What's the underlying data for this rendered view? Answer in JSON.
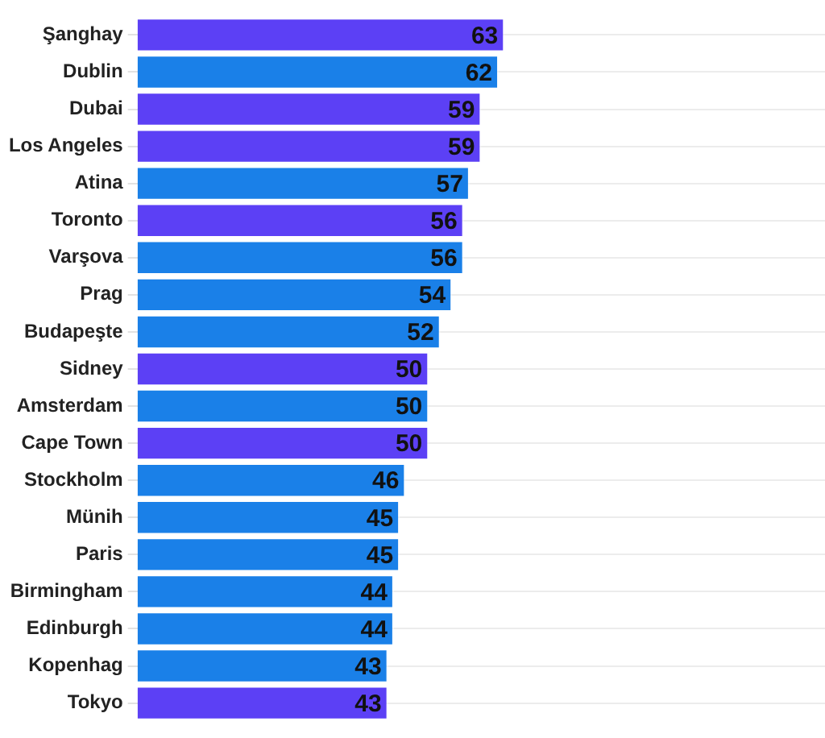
{
  "chart_data": {
    "type": "bar",
    "orientation": "horizontal",
    "categories": [
      "Şanghay",
      "Dublin",
      "Dubai",
      "Los Angeles",
      "Atina",
      "Toronto",
      "Varşova",
      "Prag",
      "Budapeşte",
      "Sidney",
      "Amsterdam",
      "Cape Town",
      "Stockholm",
      "Münih",
      "Paris",
      "Birmingham",
      "Edinburgh",
      "Kopenhag",
      "Tokyo"
    ],
    "values": [
      63,
      62,
      59,
      59,
      57,
      56,
      56,
      54,
      52,
      50,
      50,
      50,
      46,
      45,
      45,
      44,
      44,
      43,
      43
    ],
    "colors": [
      "#5c40f5",
      "#1a80e8",
      "#5c40f5",
      "#5c40f5",
      "#1a80e8",
      "#5c40f5",
      "#1a80e8",
      "#1a80e8",
      "#1a80e8",
      "#5c40f5",
      "#1a80e8",
      "#5c40f5",
      "#1a80e8",
      "#1a80e8",
      "#1a80e8",
      "#1a80e8",
      "#1a80e8",
      "#1a80e8",
      "#5c40f5"
    ],
    "xlim": [
      0,
      118
    ],
    "data_labels": true,
    "grid": "y",
    "tick_labels": "y"
  }
}
